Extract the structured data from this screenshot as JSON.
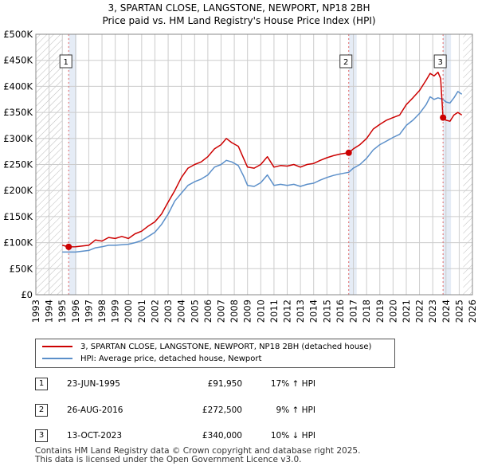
{
  "header": {
    "title_line1": "3, SPARTAN CLOSE, LANGSTONE, NEWPORT, NP18 2BH",
    "title_line2": "Price paid vs. HM Land Registry's House Price Index (HPI)"
  },
  "colors": {
    "property": "#cc0000",
    "hpi": "#5b8fc9",
    "grid": "#cccccc",
    "hatch": "#bbbbbb",
    "shade": "#e5ecf6",
    "marker_line": "#e06666"
  },
  "chart_data": {
    "type": "line",
    "title": "Price paid vs. HM Land Registry's House Price Index (HPI)",
    "xlim": [
      1993,
      2026
    ],
    "ylim": [
      0,
      500000
    ],
    "x_ticks": [
      "1993",
      "1994",
      "1995",
      "1996",
      "1997",
      "1998",
      "1999",
      "2000",
      "2001",
      "2002",
      "2003",
      "2004",
      "2005",
      "2006",
      "2007",
      "2008",
      "2009",
      "2010",
      "2011",
      "2012",
      "2013",
      "2014",
      "2015",
      "2016",
      "2017",
      "2018",
      "2019",
      "2020",
      "2021",
      "2022",
      "2023",
      "2024",
      "2025",
      "2026"
    ],
    "y_ticks": [
      "£0",
      "£50K",
      "£100K",
      "£150K",
      "£200K",
      "£250K",
      "£300K",
      "£350K",
      "£400K",
      "£450K",
      "£500K"
    ],
    "y_tick_values": [
      0,
      50000,
      100000,
      150000,
      200000,
      250000,
      300000,
      350000,
      400000,
      450000,
      500000
    ],
    "data_range": [
      1995.0,
      2025.3
    ],
    "series": [
      {
        "name": "3, SPARTAN CLOSE, LANGSTONE, NEWPORT, NP18 2BH (detached house)",
        "color": "#cc0000",
        "points": [
          [
            1995.0,
            95000
          ],
          [
            1995.48,
            91950
          ],
          [
            1996.0,
            92000
          ],
          [
            1997.0,
            95000
          ],
          [
            1997.5,
            105000
          ],
          [
            1998.0,
            103000
          ],
          [
            1998.5,
            110000
          ],
          [
            1999.0,
            108000
          ],
          [
            1999.5,
            112000
          ],
          [
            2000.0,
            108000
          ],
          [
            2000.5,
            117000
          ],
          [
            2001.0,
            122000
          ],
          [
            2001.5,
            132000
          ],
          [
            2002.0,
            140000
          ],
          [
            2002.5,
            155000
          ],
          [
            2003.0,
            178000
          ],
          [
            2003.5,
            200000
          ],
          [
            2004.0,
            225000
          ],
          [
            2004.5,
            243000
          ],
          [
            2005.0,
            250000
          ],
          [
            2005.5,
            255000
          ],
          [
            2006.0,
            265000
          ],
          [
            2006.5,
            280000
          ],
          [
            2007.0,
            288000
          ],
          [
            2007.4,
            300000
          ],
          [
            2007.8,
            292000
          ],
          [
            2008.3,
            285000
          ],
          [
            2008.7,
            262000
          ],
          [
            2009.0,
            245000
          ],
          [
            2009.5,
            243000
          ],
          [
            2010.0,
            250000
          ],
          [
            2010.5,
            265000
          ],
          [
            2011.0,
            245000
          ],
          [
            2011.5,
            248000
          ],
          [
            2012.0,
            247000
          ],
          [
            2012.5,
            250000
          ],
          [
            2013.0,
            245000
          ],
          [
            2013.5,
            250000
          ],
          [
            2014.0,
            252000
          ],
          [
            2014.5,
            258000
          ],
          [
            2015.0,
            263000
          ],
          [
            2015.5,
            267000
          ],
          [
            2016.0,
            270000
          ],
          [
            2016.65,
            272500
          ],
          [
            2017.0,
            280000
          ],
          [
            2017.5,
            288000
          ],
          [
            2018.0,
            300000
          ],
          [
            2018.5,
            318000
          ],
          [
            2019.0,
            327000
          ],
          [
            2019.5,
            335000
          ],
          [
            2020.0,
            340000
          ],
          [
            2020.5,
            345000
          ],
          [
            2021.0,
            365000
          ],
          [
            2021.5,
            378000
          ],
          [
            2022.0,
            392000
          ],
          [
            2022.5,
            412000
          ],
          [
            2022.8,
            425000
          ],
          [
            2023.1,
            420000
          ],
          [
            2023.4,
            427000
          ],
          [
            2023.6,
            415000
          ],
          [
            2023.78,
            340000
          ],
          [
            2024.0,
            335000
          ],
          [
            2024.3,
            333000
          ],
          [
            2024.6,
            345000
          ],
          [
            2024.9,
            350000
          ],
          [
            2025.2,
            345000
          ]
        ]
      },
      {
        "name": "HPI: Average price, detached house, Newport",
        "color": "#5b8fc9",
        "points": [
          [
            1995.0,
            82000
          ],
          [
            1996.0,
            82000
          ],
          [
            1997.0,
            85000
          ],
          [
            1997.5,
            90000
          ],
          [
            1998.0,
            92000
          ],
          [
            1998.5,
            95000
          ],
          [
            1999.0,
            95000
          ],
          [
            1999.5,
            96000
          ],
          [
            2000.0,
            97000
          ],
          [
            2000.5,
            100000
          ],
          [
            2001.0,
            104000
          ],
          [
            2001.5,
            112000
          ],
          [
            2002.0,
            120000
          ],
          [
            2002.5,
            135000
          ],
          [
            2003.0,
            155000
          ],
          [
            2003.5,
            180000
          ],
          [
            2004.0,
            195000
          ],
          [
            2004.5,
            210000
          ],
          [
            2005.0,
            217000
          ],
          [
            2005.5,
            222000
          ],
          [
            2006.0,
            230000
          ],
          [
            2006.5,
            245000
          ],
          [
            2007.0,
            250000
          ],
          [
            2007.4,
            258000
          ],
          [
            2007.8,
            255000
          ],
          [
            2008.3,
            248000
          ],
          [
            2008.7,
            228000
          ],
          [
            2009.0,
            210000
          ],
          [
            2009.5,
            208000
          ],
          [
            2010.0,
            215000
          ],
          [
            2010.5,
            230000
          ],
          [
            2011.0,
            210000
          ],
          [
            2011.5,
            212000
          ],
          [
            2012.0,
            210000
          ],
          [
            2012.5,
            212000
          ],
          [
            2013.0,
            208000
          ],
          [
            2013.5,
            212000
          ],
          [
            2014.0,
            214000
          ],
          [
            2014.5,
            220000
          ],
          [
            2015.0,
            225000
          ],
          [
            2015.5,
            229000
          ],
          [
            2016.0,
            232000
          ],
          [
            2016.65,
            235000
          ],
          [
            2017.0,
            243000
          ],
          [
            2017.5,
            250000
          ],
          [
            2018.0,
            262000
          ],
          [
            2018.5,
            278000
          ],
          [
            2019.0,
            288000
          ],
          [
            2019.5,
            295000
          ],
          [
            2020.0,
            302000
          ],
          [
            2020.5,
            308000
          ],
          [
            2021.0,
            325000
          ],
          [
            2021.5,
            335000
          ],
          [
            2022.0,
            348000
          ],
          [
            2022.5,
            365000
          ],
          [
            2022.8,
            380000
          ],
          [
            2023.1,
            375000
          ],
          [
            2023.4,
            378000
          ],
          [
            2023.78,
            375000
          ],
          [
            2024.0,
            370000
          ],
          [
            2024.3,
            368000
          ],
          [
            2024.6,
            378000
          ],
          [
            2024.9,
            390000
          ],
          [
            2025.2,
            385000
          ]
        ]
      }
    ],
    "sales": [
      {
        "label": "1",
        "x": 1995.48,
        "price": 91950
      },
      {
        "label": "2",
        "x": 2016.65,
        "price": 272500
      },
      {
        "label": "3",
        "x": 2023.78,
        "price": 340000
      }
    ]
  },
  "legend": {
    "property_label": "3, SPARTAN CLOSE, LANGSTONE, NEWPORT, NP18 2BH (detached house)",
    "hpi_label": "HPI: Average price, detached house, Newport"
  },
  "sales_table": [
    {
      "num": "1",
      "date": "23-JUN-1995",
      "price": "£91,950",
      "hpi": "17% ↑ HPI"
    },
    {
      "num": "2",
      "date": "26-AUG-2016",
      "price": "£272,500",
      "hpi": "9% ↑ HPI"
    },
    {
      "num": "3",
      "date": "13-OCT-2023",
      "price": "£340,000",
      "hpi": "10% ↓ HPI"
    }
  ],
  "footer": {
    "line1": "Contains HM Land Registry data © Crown copyright and database right 2025.",
    "line2": "This data is licensed under the Open Government Licence v3.0."
  }
}
